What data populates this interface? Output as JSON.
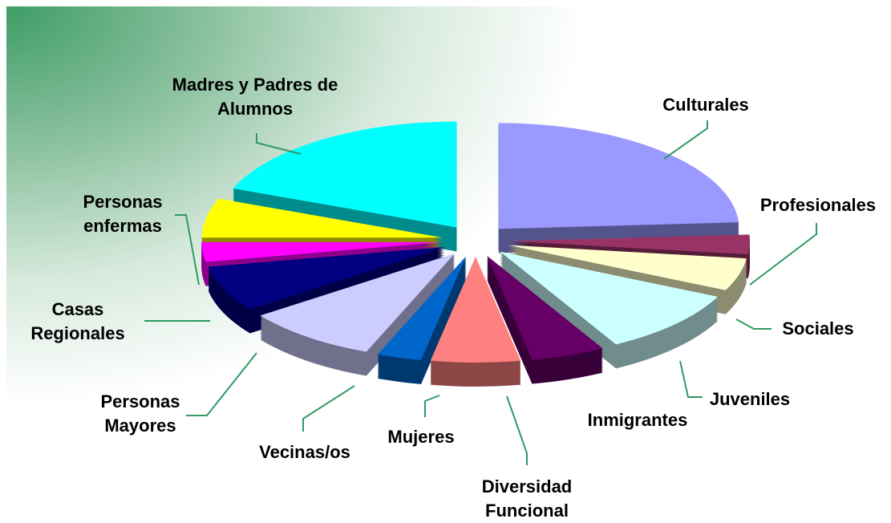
{
  "chart_data": {
    "type": "pie",
    "categories": [
      "Culturales",
      "Profesionales",
      "Sociales",
      "Juveniles",
      "Inmigrantes",
      "Diversidad Funcional",
      "Mujeres",
      "Vecinas/os",
      "Personas Mayores",
      "Casas Regionales",
      "Personas enfermas",
      "Madres y Padres de Alumnos"
    ],
    "values": [
      24,
      3,
      5,
      10,
      5,
      6,
      3,
      9,
      7,
      3,
      6,
      19
    ],
    "colors": [
      "#9999ff",
      "#993366",
      "#ffffcc",
      "#ccffff",
      "#660066",
      "#ff8080",
      "#0066cc",
      "#ccccff",
      "#000080",
      "#ff00ff",
      "#ffff00",
      "#00ffff"
    ]
  }
}
